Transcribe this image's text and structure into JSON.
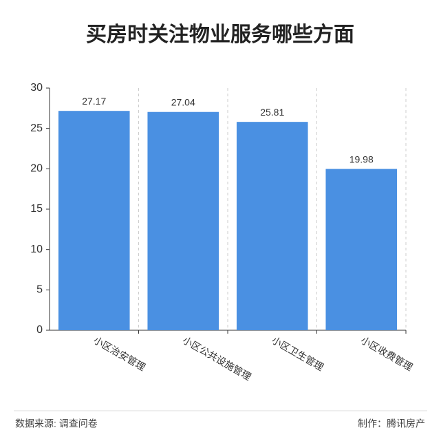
{
  "chart_data": {
    "type": "bar",
    "title": "买房时关注物业服务哪些方面",
    "categories": [
      "小区治安管理",
      "小区公共设施管理",
      "小区卫生管理",
      "小区收费管理"
    ],
    "values": [
      27.17,
      27.04,
      25.81,
      19.98
    ],
    "color": "#4a90e2",
    "ylim": [
      0,
      30
    ],
    "yticks": [
      0,
      5,
      10,
      15,
      20,
      25,
      30
    ],
    "grid": false,
    "source": "数据来源: 调查问卷",
    "credit": "制作：腾讯房产"
  }
}
